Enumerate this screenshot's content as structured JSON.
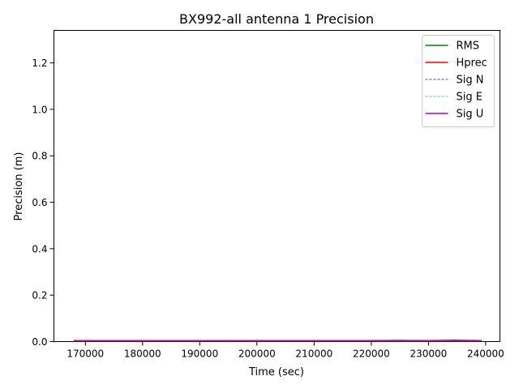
{
  "chart_data": {
    "type": "line",
    "title": "BX992-all antenna 1 Precision",
    "xlabel": "Time (sec)",
    "ylabel": "Precision (m)",
    "xlim": [
      164500,
      242500
    ],
    "ylim": [
      0,
      1.34
    ],
    "xticks": [
      170000,
      180000,
      190000,
      200000,
      210000,
      220000,
      230000,
      240000
    ],
    "xtick_labels": [
      "170000",
      "180000",
      "190000",
      "200000",
      "210000",
      "220000",
      "230000",
      "240000"
    ],
    "yticks": [
      0.0,
      0.2,
      0.4,
      0.6,
      0.8,
      1.0,
      1.2
    ],
    "ytick_labels": [
      "0.0",
      "0.2",
      "0.4",
      "0.6",
      "0.8",
      "1.0",
      "1.2"
    ],
    "grid": false,
    "legend_position": "top-right",
    "series": [
      {
        "name": "RMS",
        "color": "#008000",
        "style": "solid",
        "x": [
          168000,
          180000,
          190000,
          200000,
          210000,
          220000,
          225000,
          230000,
          234500,
          239300
        ],
        "values": [
          0.003,
          0.003,
          0.003,
          0.003,
          0.003,
          0.003,
          0.003,
          0.003,
          0.003,
          0.003
        ]
      },
      {
        "name": "Hprec",
        "color": "#ff0000",
        "style": "solid",
        "x": [
          168000,
          180000,
          190000,
          200000,
          210000,
          220000,
          225000,
          230000,
          234500,
          239300
        ],
        "values": [
          0.004,
          0.004,
          0.004,
          0.004,
          0.004,
          0.004,
          0.004,
          0.004,
          0.004,
          0.004
        ]
      },
      {
        "name": "Sig N",
        "color": "#0000ff",
        "style": "dashed",
        "x": [
          168000,
          180000,
          190000,
          200000,
          210000,
          220000,
          225000,
          230000,
          234500,
          239300
        ],
        "values": [
          0.003,
          0.003,
          0.003,
          0.003,
          0.003,
          0.003,
          0.003,
          0.003,
          0.003,
          0.003
        ]
      },
      {
        "name": "Sig E",
        "color": "#00bfbf",
        "style": "dashed",
        "x": [
          168000,
          180000,
          190000,
          200000,
          210000,
          220000,
          225000,
          230000,
          234500,
          239300
        ],
        "values": [
          0.003,
          0.003,
          0.003,
          0.003,
          0.003,
          0.003,
          0.003,
          0.003,
          0.003,
          0.003
        ]
      },
      {
        "name": "Sig U",
        "color": "#bf00bf",
        "style": "solid",
        "x": [
          168000,
          180000,
          190000,
          200000,
          210000,
          220000,
          225000,
          230000,
          234500,
          239300
        ],
        "values": [
          0.004,
          0.004,
          0.004,
          0.004,
          0.004,
          0.004,
          0.005,
          0.004,
          0.006,
          0.004
        ]
      }
    ]
  }
}
